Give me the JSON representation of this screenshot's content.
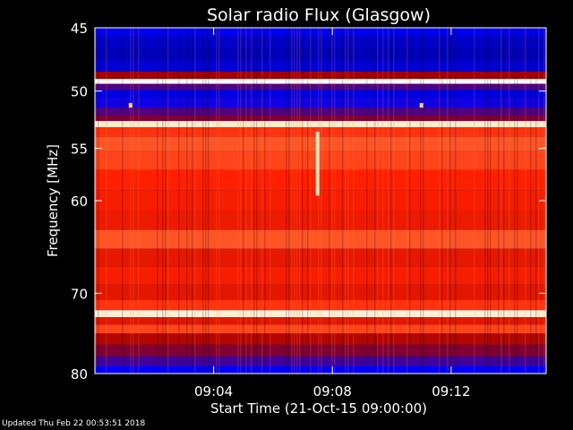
{
  "chart_data": {
    "type": "heatmap",
    "title": "Solar radio Flux (Glasgow)",
    "xlabel": "Start Time (21-Oct-15 09:00:00)",
    "ylabel": "Frequency [MHz]",
    "x_unit": "minutes after 09:00:00",
    "xlim": [
      0,
      15.2
    ],
    "ylim": [
      45,
      80
    ],
    "yscale": "log",
    "x_ticks": [
      {
        "value": 4,
        "label": "09:04"
      },
      {
        "value": 8,
        "label": "09:08"
      },
      {
        "value": 12,
        "label": "09:12"
      }
    ],
    "y_ticks": [
      {
        "value": 45,
        "label": "45"
      },
      {
        "value": 50,
        "label": "50"
      },
      {
        "value": 55,
        "label": "55"
      },
      {
        "value": 60,
        "label": "60"
      },
      {
        "value": 70,
        "label": "70"
      },
      {
        "value": 80,
        "label": "80"
      }
    ],
    "colormap": [
      "#000070",
      "#0000ff",
      "#a00000",
      "#ff2000",
      "#ffd080",
      "#ffffff"
    ],
    "intensity_rows": [
      {
        "freq": 45.3,
        "level": 0.18
      },
      {
        "freq": 46.0,
        "level": 0.12
      },
      {
        "freq": 47.0,
        "level": 0.1
      },
      {
        "freq": 48.0,
        "level": 0.14
      },
      {
        "freq": 48.8,
        "level": 0.4
      },
      {
        "freq": 49.2,
        "level": 1.0
      },
      {
        "freq": 49.6,
        "level": 0.3
      },
      {
        "freq": 50.2,
        "level": 0.16
      },
      {
        "freq": 51.0,
        "level": 0.22
      },
      {
        "freq": 51.8,
        "level": 0.3
      },
      {
        "freq": 52.3,
        "level": 0.36
      },
      {
        "freq": 52.8,
        "level": 0.92
      },
      {
        "freq": 53.4,
        "level": 0.62
      },
      {
        "freq": 54.5,
        "level": 0.66
      },
      {
        "freq": 56.0,
        "level": 0.64
      },
      {
        "freq": 58.0,
        "level": 0.6
      },
      {
        "freq": 60.0,
        "level": 0.58
      },
      {
        "freq": 62.0,
        "level": 0.56
      },
      {
        "freq": 64.0,
        "level": 0.66
      },
      {
        "freq": 66.0,
        "level": 0.55
      },
      {
        "freq": 68.0,
        "level": 0.58
      },
      {
        "freq": 70.0,
        "level": 0.54
      },
      {
        "freq": 71.6,
        "level": 0.62
      },
      {
        "freq": 72.4,
        "level": 0.93
      },
      {
        "freq": 73.3,
        "level": 0.54
      },
      {
        "freq": 74.2,
        "level": 0.64
      },
      {
        "freq": 75.5,
        "level": 0.44
      },
      {
        "freq": 77.0,
        "level": 0.36
      },
      {
        "freq": 78.5,
        "level": 0.28
      },
      {
        "freq": 79.5,
        "level": 0.2
      }
    ],
    "features": [
      {
        "name": "burst",
        "x": 7.5,
        "freq_range": [
          53.5,
          59.5
        ],
        "level": 0.9
      },
      {
        "name": "burst",
        "x": 1.2,
        "freq_range": [
          51.0,
          51.4
        ],
        "level": 0.8
      },
      {
        "name": "burst",
        "x": 11.0,
        "freq_range": [
          51.0,
          51.4
        ],
        "level": 0.8
      }
    ]
  },
  "footer": {
    "updated": "Updated Thu Feb 22 00:53:51 2018"
  }
}
